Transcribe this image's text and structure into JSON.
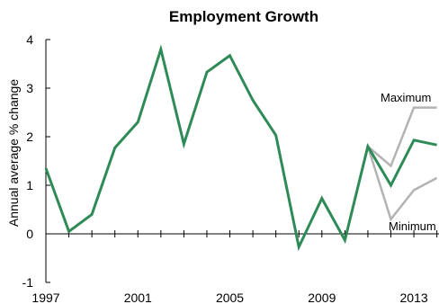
{
  "chart_data": {
    "type": "line",
    "title": "Employment Growth",
    "xlabel": "",
    "ylabel": "Annual average % change",
    "xlim": [
      1997,
      2014
    ],
    "ylim": [
      -1,
      4
    ],
    "x_ticks": [
      "1997",
      "2001",
      "2005",
      "2009",
      "2013"
    ],
    "y_ticks": [
      "4",
      "3",
      "2",
      "1",
      "0",
      "-1"
    ],
    "grid": false,
    "series": [
      {
        "color": "#2e8b57",
        "x": [
          1997,
          1998,
          1999,
          2000,
          2001,
          2002,
          2003,
          2004,
          2005,
          2006,
          2007,
          2008,
          2009,
          2010,
          2011,
          2012,
          2013,
          2014
        ],
        "y": [
          1.35,
          0.05,
          0.4,
          1.77,
          2.3,
          3.8,
          1.85,
          3.33,
          3.67,
          2.75,
          2.03,
          -0.27,
          0.73,
          -0.13,
          1.8,
          1.0,
          1.93,
          1.83
        ]
      },
      {
        "name": "Maximum",
        "color": "#b3b3b3",
        "x": [
          2011,
          2012,
          2013,
          2014
        ],
        "y": [
          1.8,
          1.4,
          2.6,
          2.6
        ]
      },
      {
        "name": "Minimum",
        "color": "#b3b3b3",
        "x": [
          2011,
          2012,
          2013,
          2014
        ],
        "y": [
          1.8,
          0.3,
          0.9,
          1.15
        ]
      }
    ]
  }
}
